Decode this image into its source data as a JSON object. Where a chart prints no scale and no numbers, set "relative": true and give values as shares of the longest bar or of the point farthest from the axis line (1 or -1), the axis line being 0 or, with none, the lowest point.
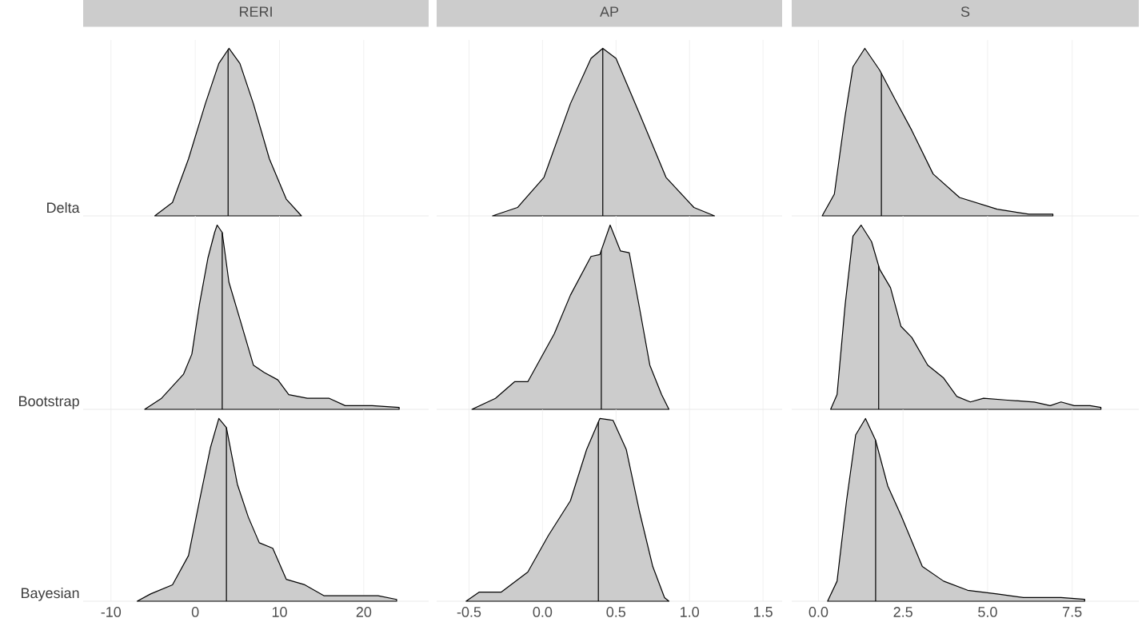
{
  "chart_data": [
    {
      "type": "area",
      "relative": true,
      "title": "RERI",
      "ylabel": "Delta",
      "color": "#cccccc",
      "grid": "x",
      "tick_labels": false,
      "xlim": [
        -13.3,
        27.7
      ],
      "xticks": [
        -10,
        0,
        10,
        20
      ],
      "ref_lines": [
        {
          "axis": "x",
          "value": 3.9
        }
      ],
      "x": [
        -4.8,
        -2.7,
        -0.8,
        1.2,
        2.8,
        4.0,
        5.3,
        6.9,
        8.8,
        10.8,
        12.6
      ],
      "values": [
        0,
        0.08,
        0.34,
        0.67,
        0.91,
        1.0,
        0.91,
        0.67,
        0.34,
        0.1,
        0
      ]
    },
    {
      "type": "area",
      "relative": true,
      "title": "AP",
      "color": "#cccccc",
      "grid": "x",
      "tick_labels": false,
      "xlim": [
        -0.72,
        1.63
      ],
      "xticks": [
        {
          "value": -0.5,
          "label": null
        },
        {
          "value": 0,
          "label": null
        },
        {
          "value": 0.5,
          "label": null
        },
        {
          "value": 1,
          "label": null
        },
        {
          "value": 1.5,
          "label": null
        }
      ],
      "ref_lines": [
        {
          "axis": "x",
          "value": 0.41
        }
      ],
      "x": [
        -0.34,
        -0.17,
        0.01,
        0.19,
        0.33,
        0.41,
        0.5,
        0.66,
        0.84,
        1.03,
        1.17
      ],
      "values": [
        0,
        0.05,
        0.23,
        0.67,
        0.94,
        1.0,
        0.94,
        0.61,
        0.23,
        0.05,
        0
      ]
    },
    {
      "type": "area",
      "relative": true,
      "title": "S",
      "color": "#cccccc",
      "grid": "x",
      "tick_labels": false,
      "xlim": [
        -0.79,
        9.47
      ],
      "xticks": [
        {
          "value": 0,
          "label": null
        },
        {
          "value": 2.5,
          "label": null
        },
        {
          "value": 5,
          "label": null
        },
        {
          "value": 7.5,
          "label": null
        }
      ],
      "ref_lines": [
        {
          "axis": "x",
          "value": 1.86
        }
      ],
      "x": [
        0.11,
        0.47,
        0.79,
        1.02,
        1.37,
        1.81,
        2.28,
        2.76,
        3.39,
        4.17,
        5.28,
        6.22,
        6.93,
        6.93
      ],
      "values": [
        0,
        0.13,
        0.6,
        0.89,
        1.0,
        0.87,
        0.69,
        0.51,
        0.25,
        0.11,
        0.04,
        0.01,
        0.01,
        0
      ]
    },
    {
      "type": "area",
      "relative": true,
      "ylabel": "Bootstrap",
      "color": "#cccccc",
      "grid": "x",
      "tick_labels": false,
      "xlim": [
        -13.3,
        27.7
      ],
      "xticks": [
        -10,
        0,
        10,
        20
      ],
      "ref_lines": [
        {
          "axis": "x",
          "value": 3.2
        }
      ],
      "x": [
        -6.0,
        -4.0,
        -1.4,
        -0.4,
        0.5,
        1.5,
        2.3,
        2.6,
        3.2,
        4.0,
        5.3,
        6.9,
        8.2,
        9.8,
        11.1,
        13.3,
        15.9,
        17.8,
        21.0,
        24.2,
        24.2
      ],
      "values": [
        0,
        0.06,
        0.19,
        0.3,
        0.57,
        0.82,
        0.96,
        1.0,
        0.96,
        0.69,
        0.49,
        0.24,
        0.2,
        0.16,
        0.08,
        0.06,
        0.06,
        0.02,
        0.02,
        0.01,
        0
      ]
    },
    {
      "type": "area",
      "relative": true,
      "color": "#cccccc",
      "grid": "x",
      "tick_labels": false,
      "xlim": [
        -0.72,
        1.63
      ],
      "xticks": [
        {
          "value": -0.5,
          "label": null
        },
        {
          "value": 0,
          "label": null
        },
        {
          "value": 0.5,
          "label": null
        },
        {
          "value": 1,
          "label": null
        },
        {
          "value": 1.5,
          "label": null
        }
      ],
      "ref_lines": [
        {
          "axis": "x",
          "value": 0.4
        }
      ],
      "x": [
        -0.48,
        -0.32,
        -0.19,
        -0.1,
        0.08,
        0.19,
        0.33,
        0.39,
        0.46,
        0.53,
        0.59,
        0.66,
        0.73,
        0.81,
        0.86
      ],
      "values": [
        0,
        0.06,
        0.15,
        0.15,
        0.41,
        0.62,
        0.83,
        0.84,
        1.0,
        0.86,
        0.85,
        0.55,
        0.24,
        0.08,
        0
      ]
    },
    {
      "type": "area",
      "relative": true,
      "color": "#cccccc",
      "grid": "x",
      "tick_labels": false,
      "xlim": [
        -0.79,
        9.47
      ],
      "xticks": [
        {
          "value": 0,
          "label": null
        },
        {
          "value": 2.5,
          "label": null
        },
        {
          "value": 5,
          "label": null
        },
        {
          "value": 7.5,
          "label": null
        }
      ],
      "ref_lines": [
        {
          "axis": "x",
          "value": 1.78
        }
      ],
      "x": [
        0.36,
        0.55,
        0.79,
        1.02,
        1.26,
        1.57,
        1.81,
        2.13,
        2.44,
        2.76,
        3.23,
        3.7,
        4.09,
        4.49,
        4.88,
        5.59,
        6.38,
        6.85,
        7.17,
        7.56,
        8.03,
        8.35,
        8.35
      ],
      "values": [
        0,
        0.08,
        0.57,
        0.94,
        1.0,
        0.91,
        0.76,
        0.66,
        0.45,
        0.39,
        0.24,
        0.17,
        0.07,
        0.04,
        0.06,
        0.05,
        0.04,
        0.02,
        0.04,
        0.02,
        0.02,
        0.01,
        0
      ]
    },
    {
      "type": "area",
      "relative": true,
      "ylabel": "Bayesian",
      "color": "#cccccc",
      "grid": "x",
      "tick_labels": "x",
      "xlim": [
        -13.3,
        27.7
      ],
      "xticks": [
        -10,
        0,
        10,
        20
      ],
      "ref_lines": [
        {
          "axis": "x",
          "value": 3.7
        }
      ],
      "x": [
        -6.9,
        -5.3,
        -2.7,
        -0.8,
        0.5,
        1.8,
        2.8,
        3.7,
        5.0,
        6.3,
        7.6,
        9.2,
        10.8,
        13.0,
        15.3,
        18.5,
        21.7,
        23.9,
        23.9
      ],
      "values": [
        0,
        0.04,
        0.09,
        0.25,
        0.55,
        0.84,
        1.0,
        0.95,
        0.64,
        0.46,
        0.32,
        0.29,
        0.12,
        0.09,
        0.03,
        0.03,
        0.03,
        0.01,
        0
      ]
    },
    {
      "type": "area",
      "relative": true,
      "color": "#cccccc",
      "grid": "x",
      "tick_labels": "x",
      "xlim": [
        -0.72,
        1.63
      ],
      "xticks": [
        {
          "value": -0.5,
          "label": "-0.5"
        },
        {
          "value": 0,
          "label": "0.0"
        },
        {
          "value": 0.5,
          "label": "0.5"
        },
        {
          "value": 1,
          "label": "1.0"
        },
        {
          "value": 1.5,
          "label": "1.5"
        }
      ],
      "ref_lines": [
        {
          "axis": "x",
          "value": 0.38
        }
      ],
      "x": [
        -0.52,
        -0.43,
        -0.28,
        -0.1,
        0.04,
        0.19,
        0.3,
        0.39,
        0.48,
        0.57,
        0.66,
        0.75,
        0.83,
        0.86
      ],
      "values": [
        0,
        0.05,
        0.05,
        0.16,
        0.36,
        0.55,
        0.83,
        1.0,
        0.99,
        0.83,
        0.49,
        0.19,
        0.02,
        0
      ]
    },
    {
      "type": "area",
      "relative": true,
      "color": "#cccccc",
      "grid": "x",
      "tick_labels": "x",
      "xlim": [
        -0.79,
        9.47
      ],
      "xticks": [
        {
          "value": 0,
          "label": "0.0"
        },
        {
          "value": 2.5,
          "label": "2.5"
        },
        {
          "value": 5,
          "label": "5.0"
        },
        {
          "value": 7.5,
          "label": "7.5"
        }
      ],
      "ref_lines": [
        {
          "axis": "x",
          "value": 1.69
        }
      ],
      "x": [
        0.27,
        0.55,
        0.83,
        1.1,
        1.39,
        1.69,
        2.05,
        2.44,
        3.07,
        3.7,
        4.41,
        5.28,
        6.06,
        7.17,
        7.87,
        7.87
      ],
      "values": [
        0,
        0.11,
        0.55,
        0.91,
        1.0,
        0.88,
        0.63,
        0.47,
        0.19,
        0.11,
        0.06,
        0.04,
        0.02,
        0.02,
        0.01,
        0
      ]
    }
  ]
}
